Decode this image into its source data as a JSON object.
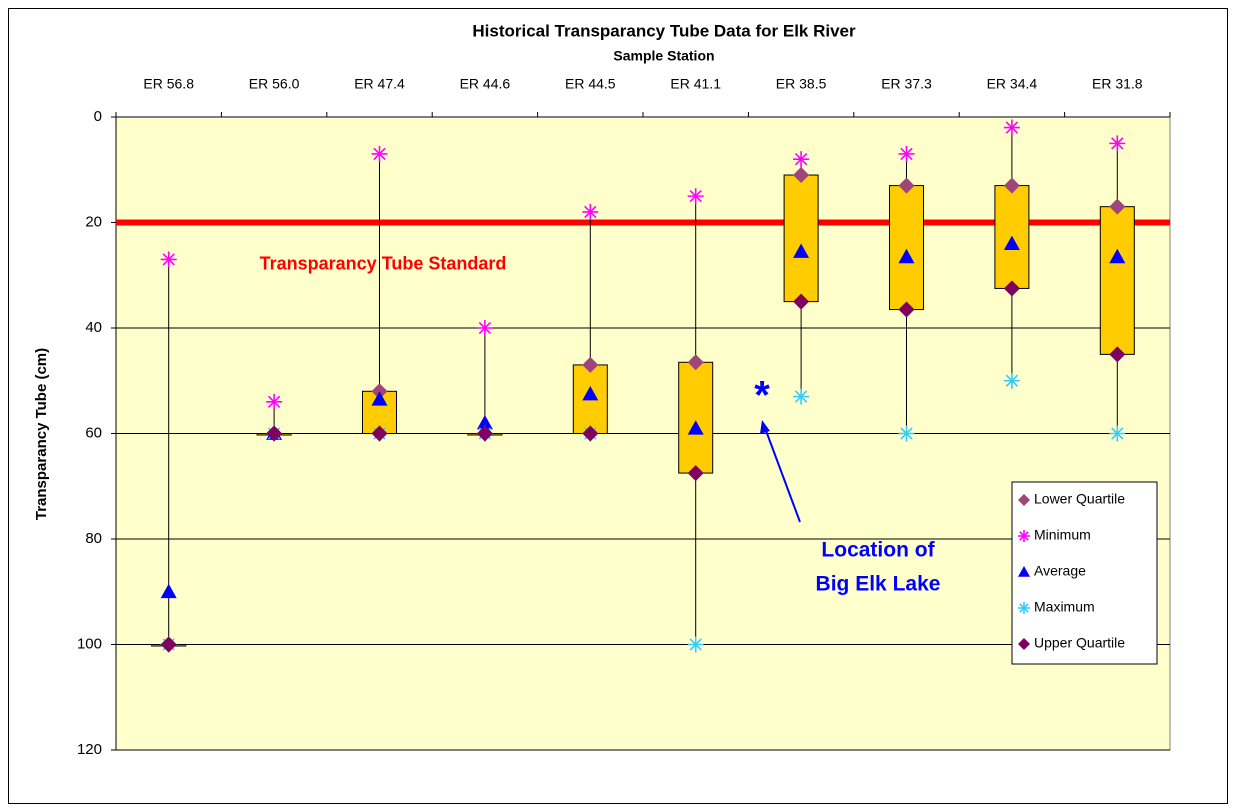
{
  "chart_data": {
    "type": "box",
    "title": "Historical Transparancy Tube Data for Elk River",
    "x_label": "Sample Station",
    "y_label": "Transparancy Tube (cm)",
    "categories": [
      "ER 56.8",
      "ER 56.0",
      "ER 47.4",
      "ER 44.6",
      "ER 44.5",
      "ER 41.1",
      "ER 38.5",
      "ER 37.3",
      "ER 34.4",
      "ER 31.8"
    ],
    "series": [
      {
        "name": "Lower Quartile",
        "color": "#a0457a",
        "marker": "diamond",
        "values": [
          100,
          60,
          52,
          60,
          47,
          46.5,
          11,
          13,
          13,
          17
        ]
      },
      {
        "name": "Minimum",
        "color": "#ff00ff",
        "marker": "asterisk",
        "values": [
          27,
          54,
          7,
          40,
          18,
          15,
          8,
          7,
          2,
          5
        ]
      },
      {
        "name": "Average",
        "color": "#0000ff",
        "marker": "triangle",
        "values": [
          90,
          60,
          53.5,
          58,
          52.5,
          59,
          25.5,
          26.5,
          24,
          26.5
        ]
      },
      {
        "name": "Maximum",
        "color": "#33ccff",
        "marker": "asterisk",
        "values": [
          100,
          60,
          60,
          60,
          60,
          100,
          53,
          60,
          50,
          60
        ]
      },
      {
        "name": "Upper Quartile",
        "color": "#800060",
        "marker": "diamond",
        "values": [
          100,
          60,
          60,
          60,
          60,
          67.5,
          35,
          36.5,
          32.5,
          45
        ]
      }
    ],
    "box_color": "#ffcc00",
    "plot_background": "#ffffcc",
    "ylim": [
      0,
      120
    ],
    "yticks": [
      0,
      20,
      40,
      60,
      80,
      100,
      120
    ],
    "y_reversed": true,
    "grid": true,
    "xaxis_position": "top",
    "legend_position": "lower right",
    "standard_line": {
      "value": 20,
      "color": "#ff0000",
      "label": "Transparancy Tube Standard"
    },
    "lake_annotation": {
      "lines": [
        "Location of",
        "Big Elk Lake"
      ],
      "marker": "*",
      "color": "#0000ff"
    }
  }
}
